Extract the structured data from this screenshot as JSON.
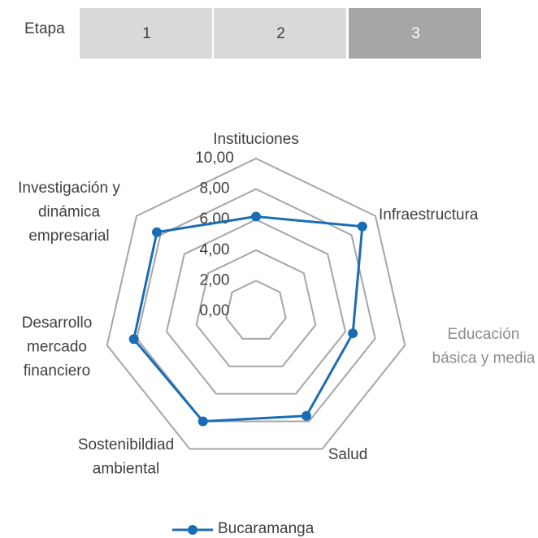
{
  "stage_selector": {
    "label": "Etapa",
    "options": [
      "1",
      "2",
      "3"
    ],
    "selected": 2
  },
  "chart_data": {
    "type": "radar",
    "categories": [
      [
        "Instituciones"
      ],
      [
        "Infraestructura"
      ],
      [
        "Educación",
        "básica y media"
      ],
      [
        "Salud"
      ],
      [
        "Sostenibildiad",
        "ambiental"
      ],
      [
        "Desarrollo",
        "mercado",
        "financiero"
      ],
      [
        "Investigación y",
        "dinámica",
        "empresarial"
      ]
    ],
    "series": [
      {
        "name": "Bucaramanga",
        "color": "#1a6db5",
        "values": [
          6.2,
          8.9,
          6.5,
          7.6,
          8.0,
          8.2,
          8.3
        ]
      }
    ],
    "ylim": [
      0,
      10
    ],
    "yticks": [
      {
        "value": 0,
        "label": "0,00"
      },
      {
        "value": 2,
        "label": "2,00"
      },
      {
        "value": 4,
        "label": "4,00"
      },
      {
        "value": 6,
        "label": "6,00"
      },
      {
        "value": 8,
        "label": "8,00"
      },
      {
        "value": 10,
        "label": "10,00"
      }
    ],
    "grid": true
  }
}
